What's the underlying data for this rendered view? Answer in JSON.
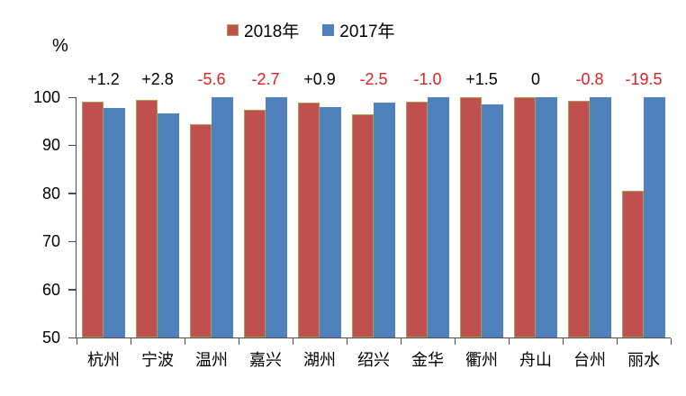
{
  "page": {
    "background": "#ffffff"
  },
  "chart_data": {
    "type": "bar",
    "title": "",
    "xlabel": "",
    "ylabel": "%",
    "ylim": [
      50,
      100
    ],
    "yticks": [
      100,
      90,
      80,
      70,
      60,
      50
    ],
    "grid": false,
    "legend_position": "top",
    "categories": [
      "杭州",
      "宁波",
      "温州",
      "嘉兴",
      "湖州",
      "绍兴",
      "金华",
      "衢州",
      "舟山",
      "台州",
      "丽水"
    ],
    "series": [
      {
        "name": "2018年",
        "color": "#c0504d",
        "border_color": "#af9b52",
        "values": [
          99.0,
          99.5,
          94.4,
          97.3,
          98.9,
          96.4,
          99.0,
          100.0,
          100.0,
          99.2,
          80.5
        ]
      },
      {
        "name": "2017年",
        "color": "#4f81bd",
        "border_color": "#4f81bd",
        "values": [
          97.8,
          96.7,
          100.0,
          100.0,
          98.0,
          98.9,
          100.0,
          98.5,
          100.0,
          100.0,
          100.0
        ]
      }
    ],
    "point_labels": {
      "values": [
        "+1.2",
        "+2.8",
        "-5.6",
        "-2.7",
        "+0.9",
        "-2.5",
        "-1.0",
        "+1.5",
        "0",
        "-0.8",
        "-19.5"
      ],
      "positive_color": "#000000",
      "negative_color": "#e02020"
    },
    "colors": {
      "axis": "#4d4d4d"
    }
  }
}
